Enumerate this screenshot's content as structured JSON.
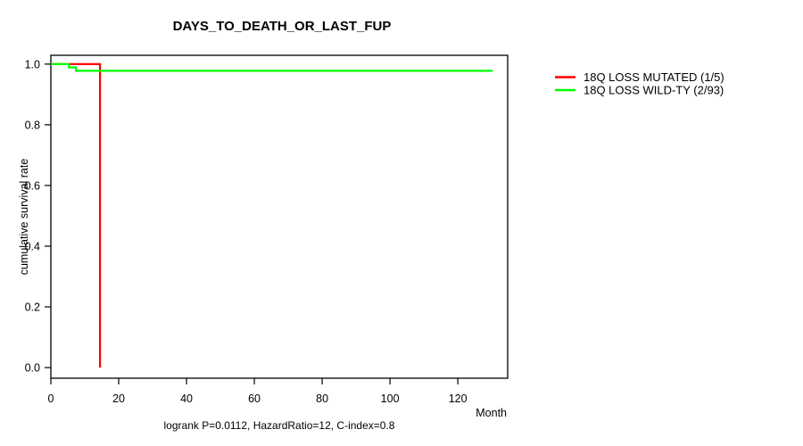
{
  "chart_data": {
    "type": "line",
    "subtype": "kaplan-meier-step",
    "title": "DAYS_TO_DEATH_OR_LAST_FUP",
    "xlabel": "Month",
    "ylabel": "cumulative survival rate",
    "footer": "logrank P=0.0112, HazardRatio=12, C-index=0.8",
    "xlim": [
      0,
      134.7
    ],
    "ylim": [
      -0.035,
      1.029
    ],
    "xticks": [
      0,
      20,
      40,
      60,
      80,
      100,
      120
    ],
    "yticks": [
      0.0,
      0.2,
      0.4,
      0.6,
      0.8,
      1.0
    ],
    "grid": false,
    "legend_position": "right-outside",
    "axis_color": "#000000",
    "text_color": "#000000",
    "background": "#ffffff",
    "series": [
      {
        "name": "18Q LOSS MUTATED (1/5)",
        "color": "#ff0000",
        "step": true,
        "points": [
          [
            0,
            1.0
          ],
          [
            14.5,
            1.0
          ],
          [
            14.5,
            0.0
          ]
        ]
      },
      {
        "name": "18Q LOSS WILD-TY (2/93)",
        "color": "#00ff00",
        "step": true,
        "points": [
          [
            0,
            1.0
          ],
          [
            5.3,
            1.0
          ],
          [
            5.3,
            0.989
          ],
          [
            7.4,
            0.989
          ],
          [
            7.4,
            0.978
          ],
          [
            130.3,
            0.978
          ]
        ]
      }
    ]
  }
}
